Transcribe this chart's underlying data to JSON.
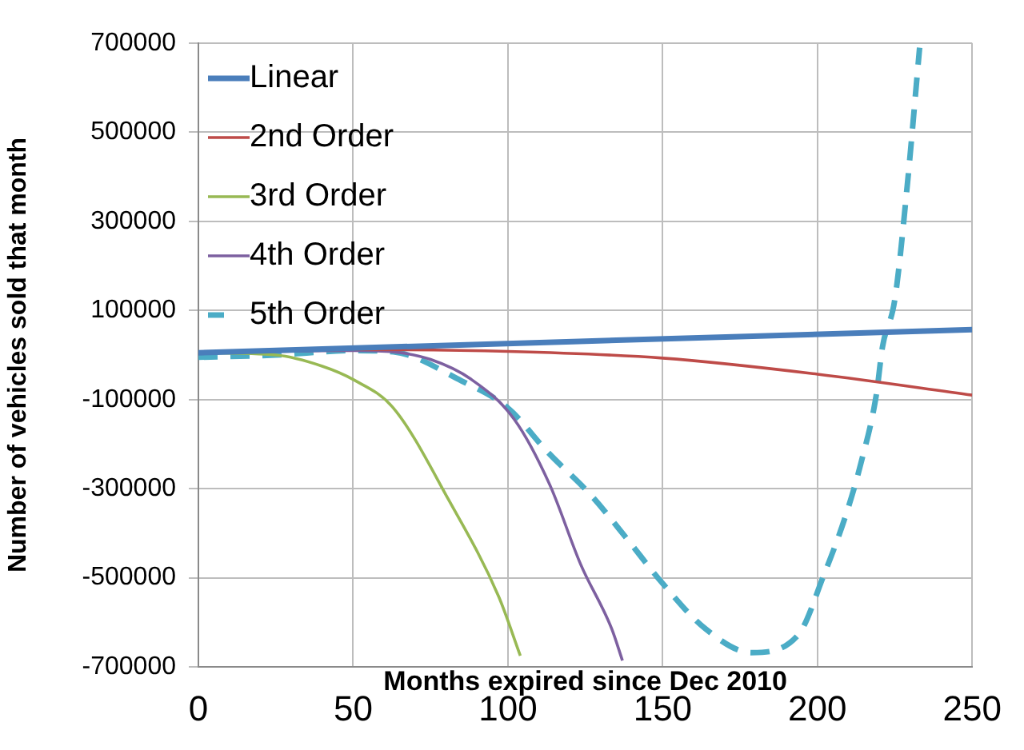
{
  "chart_data": {
    "type": "line",
    "xlabel": "Months expired since Dec 2010",
    "ylabel": "Number of vehicles sold that month",
    "xlim": [
      0,
      250
    ],
    "xticks": [
      0,
      50,
      100,
      150,
      200,
      250
    ],
    "ylim": [
      -700000,
      700000
    ],
    "yticks": [
      700000,
      500000,
      300000,
      100000,
      -100000,
      -300000,
      -500000,
      -700000
    ],
    "grid": true,
    "legend": "top left",
    "marker": "none",
    "series": [
      {
        "name": "Linear",
        "color": "#4a7ebb",
        "x": [
          0,
          250
        ],
        "values": [
          5000,
          57000
        ]
      },
      {
        "name": "2nd Order",
        "color": "#be4b48",
        "x": [
          0,
          50,
          100,
          150,
          200,
          250
        ],
        "values": [
          5000,
          12000,
          8000,
          -7000,
          -43000,
          -90000
        ]
      },
      {
        "name": "3rd Order",
        "color": "#98b954",
        "x": [
          0,
          25,
          40,
          50,
          63,
          81,
          97,
          104
        ],
        "values": [
          5000,
          0,
          -25000,
          -55000,
          -119000,
          -327000,
          -542000,
          -675000
        ]
      },
      {
        "name": "4th Order",
        "color": "#7d60a0",
        "x": [
          0,
          50,
          63,
          75,
          88,
          102,
          113.5,
          123.5,
          133.5,
          137
        ],
        "values": [
          5000,
          10000,
          7000,
          -10000,
          -54000,
          -144000,
          -291000,
          -470000,
          -614000,
          -686000
        ]
      },
      {
        "name": "5th Order",
        "color": "#4bacc6",
        "line_style": "dashed",
        "x": [
          0,
          25,
          50,
          63,
          85,
          100,
          113,
          127,
          138.5,
          150,
          163.7,
          178.7,
          193.8,
          202,
          209,
          214,
          219,
          221,
          225,
          229,
          233
        ],
        "values": [
          -5000,
          0,
          10000,
          7000,
          -58000,
          -119000,
          -219000,
          -316000,
          -413000,
          -513000,
          -614000,
          -668000,
          -628000,
          -495000,
          -363000,
          -244000,
          -90000,
          18000,
          125000,
          380000,
          690000
        ]
      }
    ]
  }
}
